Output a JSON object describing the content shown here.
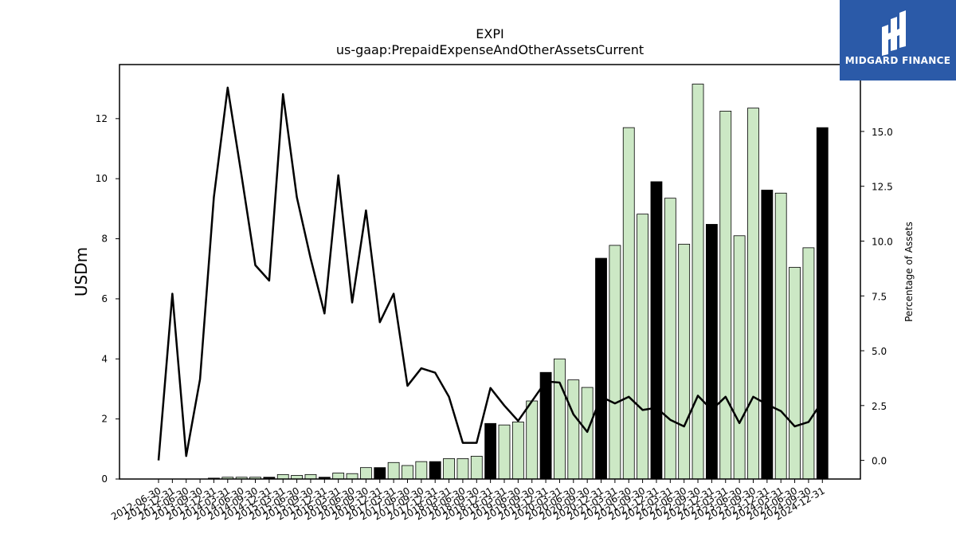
{
  "chart_data": {
    "type": "bar",
    "title": "EXPI",
    "subtitle": "us-gaap:PrepaidExpenseAndOtherAssetsCurrent",
    "ylabel": "USDm",
    "y2label": "Percentage of Assets",
    "ylim": [
      0,
      13.8
    ],
    "y2lim": [
      -0.85,
      18.05
    ],
    "yticks": [
      0,
      2,
      4,
      6,
      8,
      10,
      12
    ],
    "y2ticks": [
      0.0,
      2.5,
      5.0,
      7.5,
      10.0,
      12.5,
      15.0,
      17.5
    ],
    "y2tick_labels": [
      "0.0",
      "2.5",
      "5.0",
      "7.5",
      "10.0",
      "12.5",
      "15.0",
      "17.5"
    ],
    "categories": [
      "2012-06-30",
      "2012-12-31",
      "2013-06-30",
      "2013-09-30",
      "2013-12-31",
      "2014-03-31",
      "2014-06-30",
      "2014-09-30",
      "2014-12-31",
      "2015-03-31",
      "2015-06-30",
      "2015-09-30",
      "2015-12-31",
      "2016-03-31",
      "2016-06-30",
      "2016-09-30",
      "2016-12-31",
      "2017-03-31",
      "2017-06-30",
      "2017-09-30",
      "2017-12-31",
      "2018-03-31",
      "2018-06-30",
      "2018-09-30",
      "2018-12-31",
      "2019-03-31",
      "2019-06-30",
      "2019-09-30",
      "2019-12-31",
      "2020-03-31",
      "2020-06-30",
      "2020-09-30",
      "2020-12-31",
      "2021-03-31",
      "2021-06-30",
      "2021-09-30",
      "2021-12-31",
      "2022-03-31",
      "2022-06-30",
      "2022-09-30",
      "2022-12-31",
      "2023-03-31",
      "2023-06-30",
      "2023-09-30",
      "2023-12-31",
      "2024-03-31",
      "2024-06-30",
      "2024-09-30",
      "2024-12-31"
    ],
    "series": [
      {
        "type": "bar",
        "values": [
          0.0,
          0.0,
          0.0,
          0.0,
          0.03,
          0.06,
          0.06,
          0.06,
          0.06,
          0.15,
          0.12,
          0.15,
          0.06,
          0.2,
          0.18,
          0.38,
          0.38,
          0.55,
          0.45,
          0.58,
          0.58,
          0.68,
          0.68,
          0.76,
          1.85,
          1.8,
          1.9,
          2.6,
          3.55,
          4.0,
          3.3,
          3.05,
          7.35,
          7.78,
          11.7,
          8.82,
          9.9,
          9.35,
          7.82,
          13.15,
          8.48,
          12.25,
          8.1,
          12.35,
          9.62,
          9.52,
          7.05,
          7.7,
          11.7
        ],
        "year_end": [
          false,
          true,
          false,
          false,
          true,
          false,
          false,
          false,
          true,
          false,
          false,
          false,
          true,
          false,
          false,
          false,
          true,
          false,
          false,
          false,
          true,
          false,
          false,
          false,
          true,
          false,
          false,
          false,
          true,
          false,
          false,
          false,
          true,
          false,
          false,
          false,
          true,
          false,
          false,
          false,
          true,
          false,
          false,
          false,
          true,
          false,
          false,
          false,
          true
        ]
      },
      {
        "type": "line",
        "axis": "right",
        "values": [
          0.0,
          7.6,
          0.2,
          3.7,
          12.0,
          17.0,
          13.0,
          8.9,
          8.2,
          16.7,
          12.0,
          9.2,
          6.7,
          13.0,
          7.2,
          11.4,
          6.3,
          7.6,
          3.4,
          4.2,
          4.0,
          2.9,
          0.8,
          0.8,
          3.3,
          2.5,
          1.8,
          2.7,
          3.6,
          3.55,
          2.1,
          1.3,
          2.9,
          2.6,
          2.9,
          2.3,
          2.4,
          1.85,
          1.55,
          2.95,
          2.3,
          2.9,
          1.7,
          2.9,
          2.55,
          2.25,
          1.55,
          1.75,
          2.7
        ]
      }
    ],
    "colors": {
      "bar_fill": "#cce8c5",
      "bar_year_end": "#000000",
      "line": "#000000"
    },
    "legend": "none",
    "grid": false
  },
  "logo": {
    "brand": "MIDGARD FINANCE",
    "icon": "midgard-logo-icon",
    "color": "#2b5aa8"
  }
}
